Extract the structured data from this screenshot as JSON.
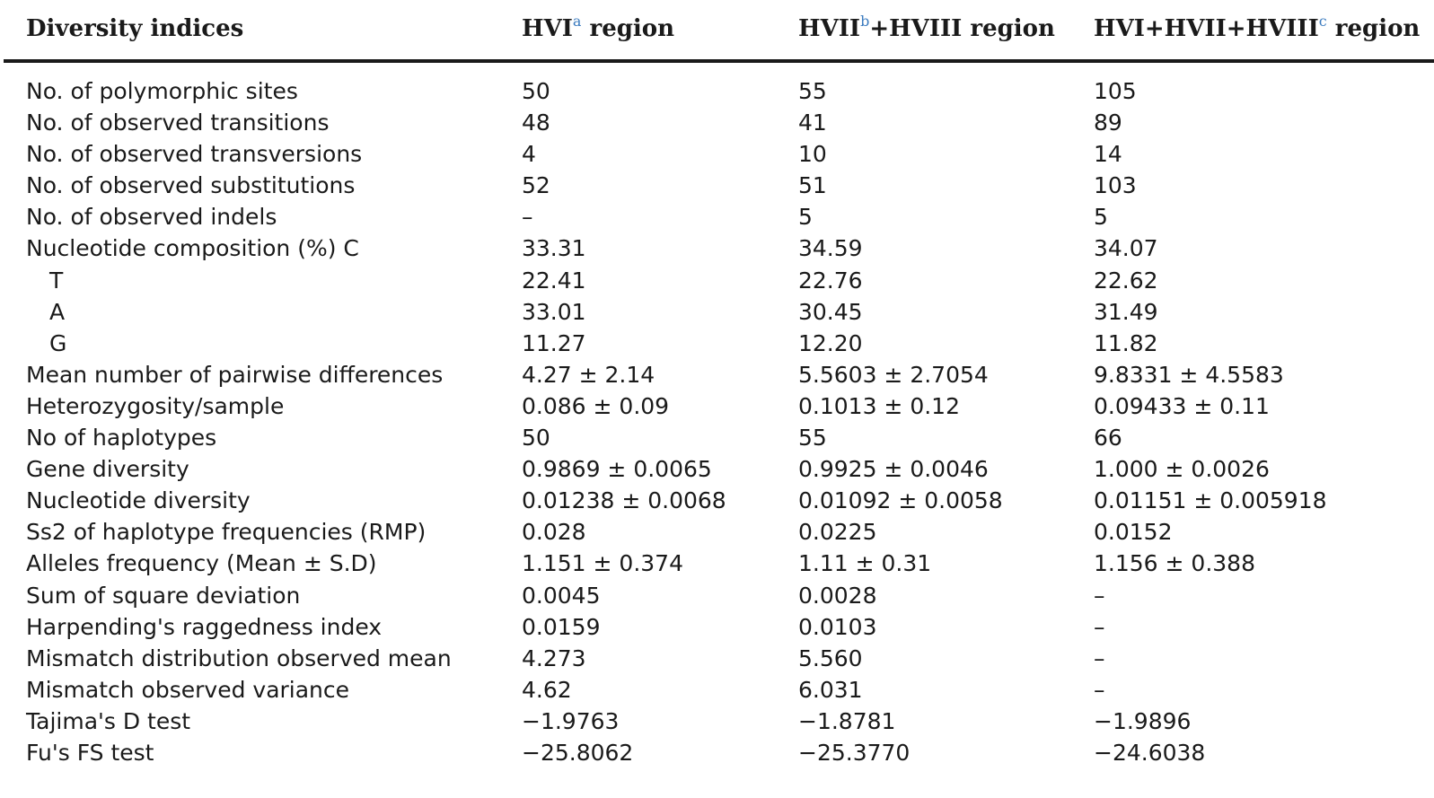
{
  "table": {
    "headers": [
      {
        "text": "Diversity indices",
        "sup": ""
      },
      {
        "pre": "HVI",
        "sup": "a",
        "post": " region"
      },
      {
        "pre": "HVII",
        "sup": "b",
        "post": "+HVIII region"
      },
      {
        "pre": "HVI+HVII+HVIII",
        "sup": "c",
        "post": " region"
      }
    ],
    "rows": [
      {
        "label": "No. of polymorphic sites",
        "indent": false,
        "values": [
          "50",
          "55",
          "105"
        ]
      },
      {
        "label": "No. of observed transitions",
        "indent": false,
        "values": [
          "48",
          "41",
          "89"
        ]
      },
      {
        "label": "No. of observed transversions",
        "indent": false,
        "values": [
          "4",
          "10",
          "14"
        ]
      },
      {
        "label": "No. of observed substitutions",
        "indent": false,
        "values": [
          "52",
          "51",
          "103"
        ]
      },
      {
        "label": "No. of observed indels",
        "indent": false,
        "values": [
          "–",
          "5",
          "5"
        ]
      },
      {
        "label": "Nucleotide composition (%) C",
        "indent": false,
        "values": [
          "33.31",
          "34.59",
          "34.07"
        ]
      },
      {
        "label": "T",
        "indent": true,
        "values": [
          "22.41",
          "22.76",
          "22.62"
        ]
      },
      {
        "label": "A",
        "indent": true,
        "values": [
          "33.01",
          "30.45",
          "31.49"
        ]
      },
      {
        "label": "G",
        "indent": true,
        "values": [
          "11.27",
          "12.20",
          "11.82"
        ]
      },
      {
        "label": "Mean number of pairwise differences",
        "indent": false,
        "values": [
          "4.27 ± 2.14",
          "5.5603 ± 2.7054",
          "9.8331 ± 4.5583"
        ]
      },
      {
        "label": "Heterozygosity/sample",
        "indent": false,
        "values": [
          "0.086 ± 0.09",
          "0.1013 ± 0.12",
          "0.09433 ± 0.11"
        ]
      },
      {
        "label": "No of haplotypes",
        "indent": false,
        "values": [
          "50",
          "55",
          "66"
        ]
      },
      {
        "label": "Gene diversity",
        "indent": false,
        "values": [
          "0.9869 ± 0.0065",
          "0.9925 ± 0.0046",
          "1.000 ± 0.0026"
        ]
      },
      {
        "label": "Nucleotide diversity",
        "indent": false,
        "values": [
          "0.01238 ± 0.0068",
          "0.01092 ± 0.0058",
          "0.01151 ± 0.005918"
        ]
      },
      {
        "label": "Ss2 of haplotype frequencies (RMP)",
        "indent": false,
        "values": [
          "0.028",
          "0.0225",
          "0.0152"
        ]
      },
      {
        "label": "Alleles frequency (Mean ± S.D)",
        "indent": false,
        "values": [
          "1.151 ± 0.374",
          "1.11 ± 0.31",
          "1.156 ± 0.388"
        ]
      },
      {
        "label": "Sum of square deviation",
        "indent": false,
        "values": [
          "0.0045",
          "0.0028",
          "–"
        ]
      },
      {
        "label": "Harpending's raggedness index",
        "indent": false,
        "values": [
          "0.0159",
          "0.0103",
          "–"
        ]
      },
      {
        "label": "Mismatch distribution observed mean",
        "indent": false,
        "values": [
          "4.273",
          "5.560",
          "–"
        ]
      },
      {
        "label": "Mismatch observed variance",
        "indent": false,
        "values": [
          "4.62",
          "6.031",
          "–"
        ]
      },
      {
        "label": "Tajima's D test",
        "indent": false,
        "values": [
          "−1.9763",
          "−1.8781",
          "−1.9896"
        ]
      },
      {
        "label": "Fu's FS test",
        "indent": false,
        "values": [
          "−25.8062",
          "−25.3770",
          "−24.6038"
        ]
      }
    ]
  }
}
